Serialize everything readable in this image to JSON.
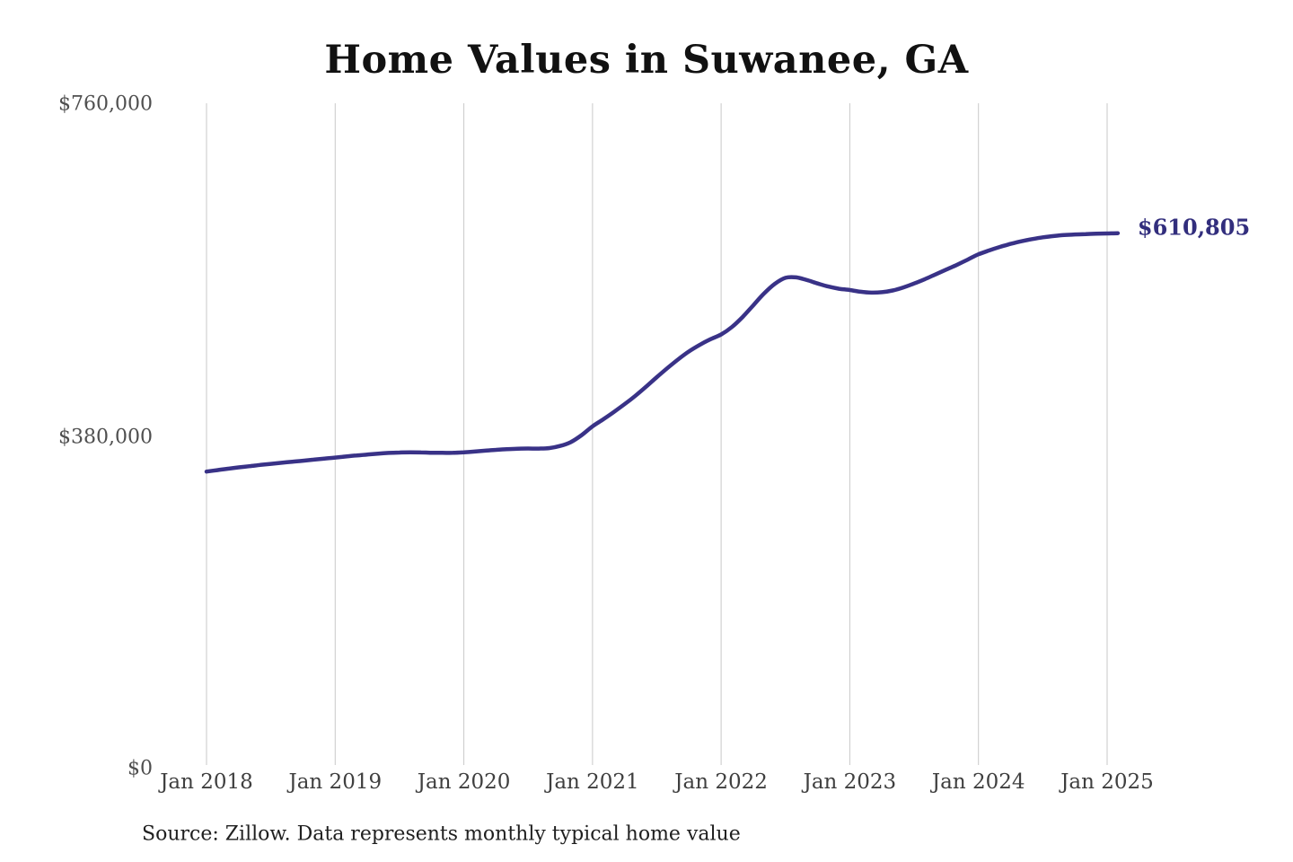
{
  "style": {
    "background": "#ffffff",
    "line_color": "#393287",
    "gridline_color": "#c9c9c9",
    "title_color": "#111111",
    "axis_label_color": "#4f4f4f",
    "annotation_color": "#322e7d"
  },
  "chart_data": {
    "type": "line",
    "title": "Home Values in Suwanee, GA",
    "source_note": "Source: Zillow. Data represents monthly typical home value",
    "xlabel": "",
    "ylabel": "",
    "ylim": [
      0,
      760000
    ],
    "grid": "vertical-only",
    "legend": "none",
    "annotation": {
      "text": "$610,805",
      "attached_to": "last-point"
    },
    "y_ticks": [
      {
        "label": "$0",
        "value": 0
      },
      {
        "label": "$380,000",
        "value": 380000
      },
      {
        "label": "$760,000",
        "value": 760000
      }
    ],
    "x_ticks": [
      {
        "label": "Jan 2018",
        "month_index": 0
      },
      {
        "label": "Jan 2019",
        "month_index": 12
      },
      {
        "label": "Jan 2020",
        "month_index": 24
      },
      {
        "label": "Jan 2021",
        "month_index": 36
      },
      {
        "label": "Jan 2022",
        "month_index": 48
      },
      {
        "label": "Jan 2023",
        "month_index": 60
      },
      {
        "label": "Jan 2024",
        "month_index": 72
      },
      {
        "label": "Jan 2025",
        "month_index": 84
      }
    ],
    "x": [
      "2018-01",
      "2018-02",
      "2018-03",
      "2018-04",
      "2018-05",
      "2018-06",
      "2018-07",
      "2018-08",
      "2018-09",
      "2018-10",
      "2018-11",
      "2018-12",
      "2019-01",
      "2019-02",
      "2019-03",
      "2019-04",
      "2019-05",
      "2019-06",
      "2019-07",
      "2019-08",
      "2019-09",
      "2019-10",
      "2019-11",
      "2019-12",
      "2020-01",
      "2020-02",
      "2020-03",
      "2020-04",
      "2020-05",
      "2020-06",
      "2020-07",
      "2020-08",
      "2020-09",
      "2020-10",
      "2020-11",
      "2020-12",
      "2021-01",
      "2021-02",
      "2021-03",
      "2021-04",
      "2021-05",
      "2021-06",
      "2021-07",
      "2021-08",
      "2021-09",
      "2021-10",
      "2021-11",
      "2021-12",
      "2022-01",
      "2022-02",
      "2022-03",
      "2022-04",
      "2022-05",
      "2022-06",
      "2022-07",
      "2022-08",
      "2022-09",
      "2022-10",
      "2022-11",
      "2022-12",
      "2023-01",
      "2023-02",
      "2023-03",
      "2023-04",
      "2023-05",
      "2023-06",
      "2023-07",
      "2023-08",
      "2023-09",
      "2023-10",
      "2023-11",
      "2023-12",
      "2024-01",
      "2024-02",
      "2024-03",
      "2024-04",
      "2024-05",
      "2024-06",
      "2024-07",
      "2024-08",
      "2024-09",
      "2024-10",
      "2024-11",
      "2024-12",
      "2025-01",
      "2025-02"
    ],
    "series": [
      {
        "name": "Monthly typical home value",
        "values": [
          337000,
          338700,
          340300,
          341800,
          343200,
          344600,
          345900,
          347100,
          348300,
          349500,
          350700,
          351900,
          353100,
          354300,
          355500,
          356600,
          357600,
          358400,
          358900,
          359100,
          359000,
          358700,
          358500,
          358600,
          359100,
          360000,
          361000,
          362000,
          362800,
          363300,
          363500,
          363400,
          364000,
          366500,
          371000,
          379000,
          389000,
          397000,
          405500,
          414500,
          424000,
          434500,
          445500,
          456000,
          466000,
          475000,
          482500,
          489000,
          494500,
          503000,
          514500,
          528000,
          541500,
          552500,
          559500,
          560000,
          557000,
          553000,
          549500,
          547000,
          545500,
          543500,
          542500,
          543000,
          545000,
          548500,
          553000,
          558000,
          563500,
          569000,
          574500,
          580500,
          586500,
          591000,
          595000,
          598500,
          601500,
          604000,
          606000,
          607500,
          608600,
          609300,
          609800,
          610200,
          610500,
          610805
        ]
      }
    ]
  }
}
